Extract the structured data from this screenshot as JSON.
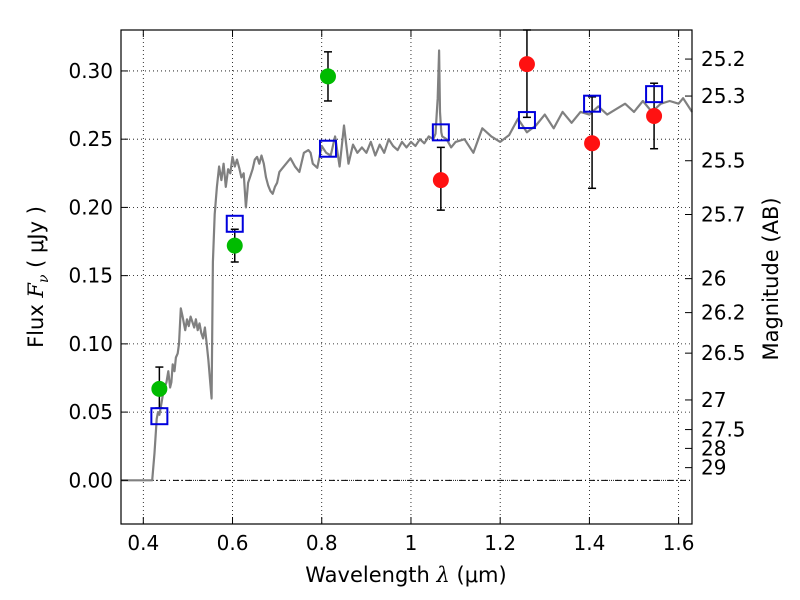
{
  "chart_data": {
    "type": "scatter",
    "xlabel": {
      "prefix": "Wavelength  ",
      "symbol": "λ",
      "unit": " (μm)"
    },
    "ylabel": {
      "prefix": "Flux  ",
      "symbol": "F",
      "subscript": "ν",
      "unit": "  ( μJy )"
    },
    "y2label": "Magnitude (AB)",
    "xlim": [
      0.35,
      1.63
    ],
    "ylim": [
      -0.032,
      0.33
    ],
    "x_ticks": [
      {
        "value": 0.4,
        "label": "0.4"
      },
      {
        "value": 0.6,
        "label": "0.6"
      },
      {
        "value": 0.8,
        "label": "0.8"
      },
      {
        "value": 1.0,
        "label": "1"
      },
      {
        "value": 1.2,
        "label": "1.2"
      },
      {
        "value": 1.4,
        "label": "1.4"
      },
      {
        "value": 1.6,
        "label": "1.6"
      }
    ],
    "y_ticks": [
      {
        "value": 0.0,
        "label": "0.00"
      },
      {
        "value": 0.05,
        "label": "0.05"
      },
      {
        "value": 0.1,
        "label": "0.10"
      },
      {
        "value": 0.15,
        "label": "0.15"
      },
      {
        "value": 0.2,
        "label": "0.20"
      },
      {
        "value": 0.25,
        "label": "0.25"
      },
      {
        "value": 0.3,
        "label": "0.30"
      }
    ],
    "mag_ticks": [
      {
        "label": "25.2",
        "flux": 0.3087
      },
      {
        "label": "25.3",
        "flux": 0.2816
      },
      {
        "label": "25.5",
        "flux": 0.2342
      },
      {
        "label": "25.7",
        "flux": 0.1948
      },
      {
        "label": "26",
        "flux": 0.1478
      },
      {
        "label": "26.2",
        "flux": 0.1229
      },
      {
        "label": "26.5",
        "flux": 0.0932
      },
      {
        "label": "27",
        "flux": 0.0589
      },
      {
        "label": "27.5",
        "flux": 0.0372
      },
      {
        "label": "28",
        "flux": 0.0234
      },
      {
        "label": "29",
        "flux": 0.0093
      }
    ],
    "zero_line": 0.0,
    "grid": true,
    "colors": {
      "model": "#808080",
      "green": "#00bb00",
      "red": "#ff1111",
      "box": "#0000dd",
      "errorbar": "#000000"
    },
    "model_spectrum": {
      "x": [
        0.35,
        0.37,
        0.39,
        0.405,
        0.412,
        0.42,
        0.425,
        0.43,
        0.433,
        0.436,
        0.44,
        0.445,
        0.448,
        0.452,
        0.456,
        0.46,
        0.463,
        0.466,
        0.47,
        0.473,
        0.477,
        0.48,
        0.484,
        0.488,
        0.491,
        0.494,
        0.498,
        0.502,
        0.506,
        0.51,
        0.514,
        0.518,
        0.522,
        0.526,
        0.53,
        0.534,
        0.538,
        0.542,
        0.546,
        0.55,
        0.553,
        0.556,
        0.56,
        0.565,
        0.57,
        0.575,
        0.58,
        0.585,
        0.59,
        0.595,
        0.6,
        0.605,
        0.61,
        0.615,
        0.62,
        0.625,
        0.63,
        0.635,
        0.64,
        0.645,
        0.65,
        0.655,
        0.66,
        0.665,
        0.67,
        0.675,
        0.68,
        0.685,
        0.69,
        0.695,
        0.7,
        0.705,
        0.71,
        0.72,
        0.73,
        0.74,
        0.75,
        0.76,
        0.77,
        0.775,
        0.78,
        0.79,
        0.8,
        0.81,
        0.82,
        0.83,
        0.84,
        0.85,
        0.86,
        0.87,
        0.88,
        0.89,
        0.9,
        0.91,
        0.92,
        0.93,
        0.94,
        0.95,
        0.96,
        0.97,
        0.98,
        0.99,
        1.0,
        1.01,
        1.02,
        1.03,
        1.04,
        1.05,
        1.055,
        1.06,
        1.063,
        1.065,
        1.068,
        1.07,
        1.08,
        1.09,
        1.1,
        1.12,
        1.14,
        1.16,
        1.18,
        1.2,
        1.22,
        1.24,
        1.26,
        1.28,
        1.3,
        1.32,
        1.34,
        1.36,
        1.38,
        1.4,
        1.42,
        1.44,
        1.46,
        1.48,
        1.5,
        1.52,
        1.54,
        1.56,
        1.58,
        1.6,
        1.61,
        1.63
      ],
      "y": [
        0.0,
        0.0,
        0.0,
        0.0,
        0.0,
        0.0,
        0.02,
        0.045,
        0.05,
        0.048,
        0.055,
        0.065,
        0.068,
        0.072,
        0.08,
        0.068,
        0.072,
        0.085,
        0.08,
        0.09,
        0.093,
        0.1,
        0.126,
        0.12,
        0.115,
        0.11,
        0.118,
        0.113,
        0.12,
        0.116,
        0.112,
        0.118,
        0.11,
        0.115,
        0.108,
        0.104,
        0.112,
        0.1,
        0.088,
        0.072,
        0.06,
        0.16,
        0.195,
        0.215,
        0.23,
        0.22,
        0.232,
        0.215,
        0.228,
        0.225,
        0.237,
        0.23,
        0.235,
        0.229,
        0.222,
        0.225,
        0.2,
        0.218,
        0.223,
        0.228,
        0.235,
        0.237,
        0.232,
        0.238,
        0.232,
        0.222,
        0.216,
        0.212,
        0.21,
        0.215,
        0.218,
        0.226,
        0.228,
        0.232,
        0.236,
        0.23,
        0.226,
        0.24,
        0.242,
        0.24,
        0.232,
        0.229,
        0.245,
        0.24,
        0.238,
        0.252,
        0.23,
        0.26,
        0.232,
        0.246,
        0.24,
        0.244,
        0.24,
        0.248,
        0.238,
        0.246,
        0.24,
        0.25,
        0.245,
        0.242,
        0.248,
        0.244,
        0.248,
        0.245,
        0.25,
        0.247,
        0.252,
        0.25,
        0.254,
        0.28,
        0.315,
        0.27,
        0.255,
        0.252,
        0.25,
        0.244,
        0.248,
        0.25,
        0.24,
        0.258,
        0.252,
        0.248,
        0.253,
        0.265,
        0.255,
        0.26,
        0.268,
        0.258,
        0.27,
        0.262,
        0.27,
        0.268,
        0.274,
        0.268,
        0.272,
        0.276,
        0.27,
        0.278,
        0.27,
        0.276,
        0.278,
        0.276,
        0.28,
        0.27
      ]
    },
    "series": [
      {
        "marker": "circle",
        "color": "green",
        "points": [
          {
            "x": 0.436,
            "y": 0.067,
            "err_low": 0.053,
            "err_high": 0.083
          },
          {
            "x": 0.605,
            "y": 0.172,
            "err_low": 0.16,
            "err_high": 0.184
          },
          {
            "x": 0.814,
            "y": 0.296,
            "err_low": 0.278,
            "err_high": 0.314
          }
        ]
      },
      {
        "marker": "circle",
        "color": "red",
        "points": [
          {
            "x": 1.067,
            "y": 0.22,
            "err_low": 0.198,
            "err_high": 0.244
          },
          {
            "x": 1.26,
            "y": 0.305,
            "err_low": 0.266,
            "err_high": 0.33
          },
          {
            "x": 1.406,
            "y": 0.247,
            "err_low": 0.214,
            "err_high": 0.281
          },
          {
            "x": 1.545,
            "y": 0.267,
            "err_low": 0.243,
            "err_high": 0.291
          }
        ]
      },
      {
        "marker": "open-square",
        "color": "box",
        "points": [
          {
            "x": 0.436,
            "y": 0.047
          },
          {
            "x": 0.605,
            "y": 0.188
          },
          {
            "x": 0.814,
            "y": 0.243
          },
          {
            "x": 1.067,
            "y": 0.255
          },
          {
            "x": 1.26,
            "y": 0.264
          },
          {
            "x": 1.406,
            "y": 0.276
          },
          {
            "x": 1.545,
            "y": 0.283
          }
        ]
      }
    ]
  }
}
